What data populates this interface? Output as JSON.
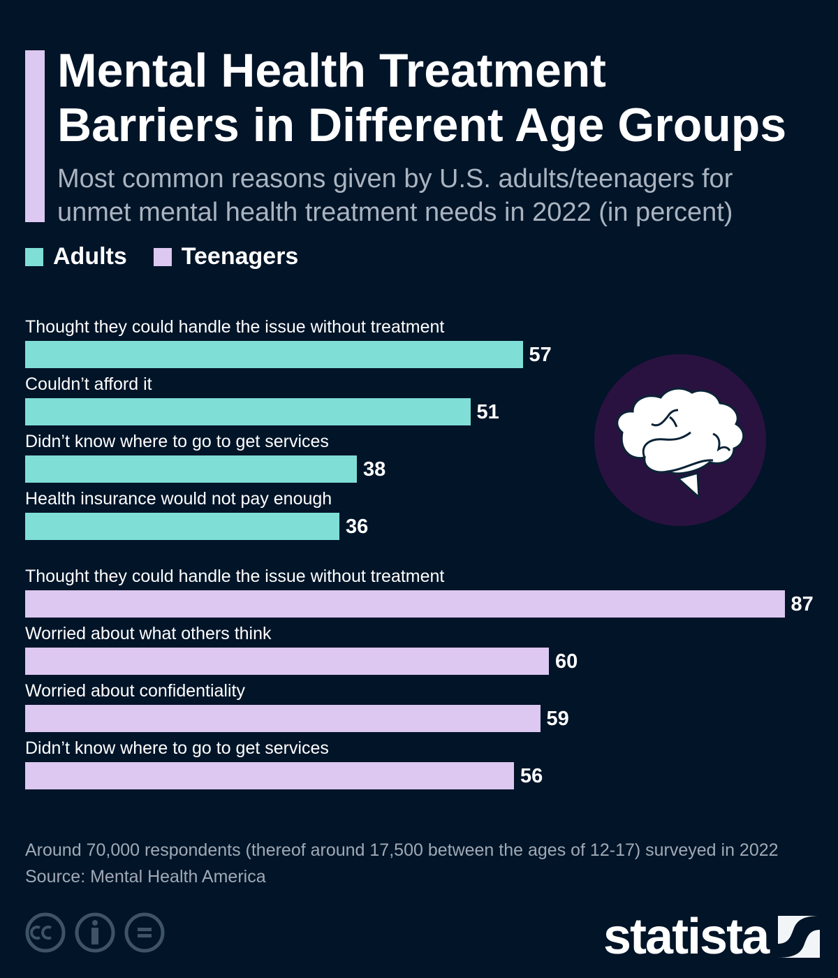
{
  "title_lines": [
    "Mental Health Treatment",
    "Barriers in Different Age Groups"
  ],
  "subtitle_lines": [
    "Most common reasons given by U.S. adults/teenagers for",
    "unmet mental health treatment needs in 2022 (in percent)"
  ],
  "colors": {
    "background": "#011428",
    "adults": "#7fdfd6",
    "teenagers": "#dcc8f0",
    "brain_circle": "#2a1240"
  },
  "chart_data": {
    "type": "bar",
    "orientation": "horizontal",
    "legend": [
      "Adults",
      "Teenagers"
    ],
    "legend_placement": "top-left",
    "grid": false,
    "xlim": [
      0,
      87
    ],
    "groups": [
      {
        "series": "Adults",
        "categories": [
          "Thought they could handle the issue without treatment",
          "Couldn’t afford it",
          "Didn’t know where to go to get services",
          "Health insurance would not pay enough"
        ],
        "values": [
          57,
          51,
          38,
          36
        ]
      },
      {
        "series": "Teenagers",
        "categories": [
          "Thought they could handle the issue without treatment",
          "Worried about what others think",
          "Worried about confidentiality",
          "Didn’t know where to go to get services"
        ],
        "values": [
          87,
          60,
          59,
          56
        ]
      }
    ]
  },
  "illustration": "brain-icon",
  "notes": [
    "Around 70,000 respondents (thereof around 17,500 between the ages of 12-17) surveyed in 2022",
    "Source: Mental Health America"
  ],
  "license_icons": [
    "cc-icon",
    "attribution-icon",
    "no-derivatives-icon"
  ],
  "logo": "statista"
}
